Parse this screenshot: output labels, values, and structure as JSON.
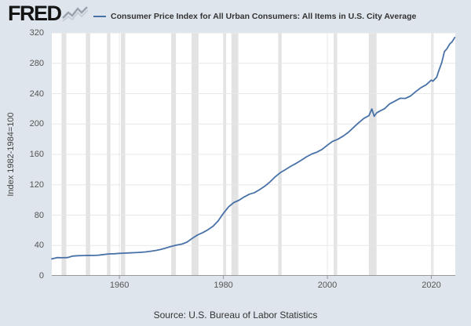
{
  "header": {
    "logo_text": "FRED",
    "legend_label": "Consumer Price Index for All Urban Consumers: All Items in U.S. City Average"
  },
  "footer": {
    "source_text": "Source: U.S. Bureau of Labor Statistics"
  },
  "colors": {
    "background": "#dee5ec",
    "plot_background": "#ffffff",
    "line": "#4872a7",
    "recession_band": "#e3e3e3",
    "gridline": "#e8e8e8",
    "axis_line": "#999999",
    "axis_text": "#555555"
  },
  "chart_data": {
    "type": "line",
    "title": "Consumer Price Index for All Urban Consumers: All Items in U.S. City Average",
    "xlabel": "",
    "ylabel": "Index 1982-1984=100",
    "xlim": [
      1947,
      2024.6
    ],
    "ylim": [
      0,
      320
    ],
    "x_ticks": [
      1960,
      1980,
      2000,
      2020
    ],
    "y_ticks": [
      0,
      40,
      80,
      120,
      160,
      200,
      240,
      280,
      320
    ],
    "grid": true,
    "legend_position": "top",
    "recession_bands": [
      [
        1948.87,
        1949.79
      ],
      [
        1953.54,
        1954.37
      ],
      [
        1957.62,
        1958.29
      ],
      [
        1960.29,
        1961.12
      ],
      [
        1969.96,
        1970.87
      ],
      [
        1973.87,
        1975.21
      ],
      [
        1980.04,
        1980.54
      ],
      [
        1981.54,
        1982.87
      ],
      [
        1990.54,
        1991.21
      ],
      [
        2001.21,
        2001.87
      ],
      [
        2007.96,
        2009.46
      ],
      [
        2020.12,
        2020.29
      ]
    ],
    "series": [
      {
        "name": "Consumer Price Index for All Urban Consumers: All Items in U.S. City Average",
        "x": [
          1947,
          1948,
          1949,
          1950,
          1951,
          1952,
          1953,
          1954,
          1955,
          1956,
          1957,
          1958,
          1959,
          1960,
          1961,
          1962,
          1963,
          1964,
          1965,
          1966,
          1967,
          1968,
          1969,
          1970,
          1971,
          1972,
          1973,
          1974,
          1975,
          1976,
          1977,
          1978,
          1979,
          1980,
          1981,
          1982,
          1983,
          1984,
          1985,
          1986,
          1987,
          1988,
          1989,
          1990,
          1991,
          1992,
          1993,
          1994,
          1995,
          1996,
          1997,
          1998,
          1999,
          2000,
          2001,
          2002,
          2003,
          2004,
          2005,
          2006,
          2007,
          2008,
          2008.55,
          2009,
          2009.5,
          2010,
          2011,
          2012,
          2013,
          2014,
          2015,
          2016,
          2017,
          2018,
          2019,
          2020,
          2020.3,
          2021,
          2021.5,
          2022,
          2022.5,
          2023,
          2023.5,
          2024,
          2024.5
        ],
        "y": [
          22.3,
          24.1,
          23.8,
          24.1,
          26.0,
          26.5,
          26.7,
          26.9,
          26.8,
          27.2,
          28.1,
          28.9,
          29.1,
          29.6,
          29.9,
          30.2,
          30.6,
          31.0,
          31.5,
          32.4,
          33.4,
          34.8,
          36.7,
          38.8,
          40.5,
          41.8,
          44.4,
          49.3,
          53.8,
          56.9,
          60.6,
          65.2,
          72.6,
          82.4,
          90.9,
          96.5,
          99.6,
          103.9,
          107.6,
          109.6,
          113.6,
          118.3,
          124.0,
          130.7,
          136.2,
          140.3,
          144.5,
          148.2,
          152.4,
          156.9,
          160.5,
          163.0,
          166.6,
          172.2,
          177.1,
          179.9,
          184.0,
          188.9,
          195.3,
          201.6,
          207.3,
          211.1,
          219.9,
          210.2,
          214.8,
          216.7,
          220.2,
          226.7,
          230.3,
          233.9,
          233.7,
          236.9,
          242.8,
          247.9,
          251.7,
          257.9,
          256.4,
          261.6,
          271.7,
          281.1,
          295.3,
          299.2,
          305.1,
          308.4,
          314.0
        ]
      }
    ]
  }
}
